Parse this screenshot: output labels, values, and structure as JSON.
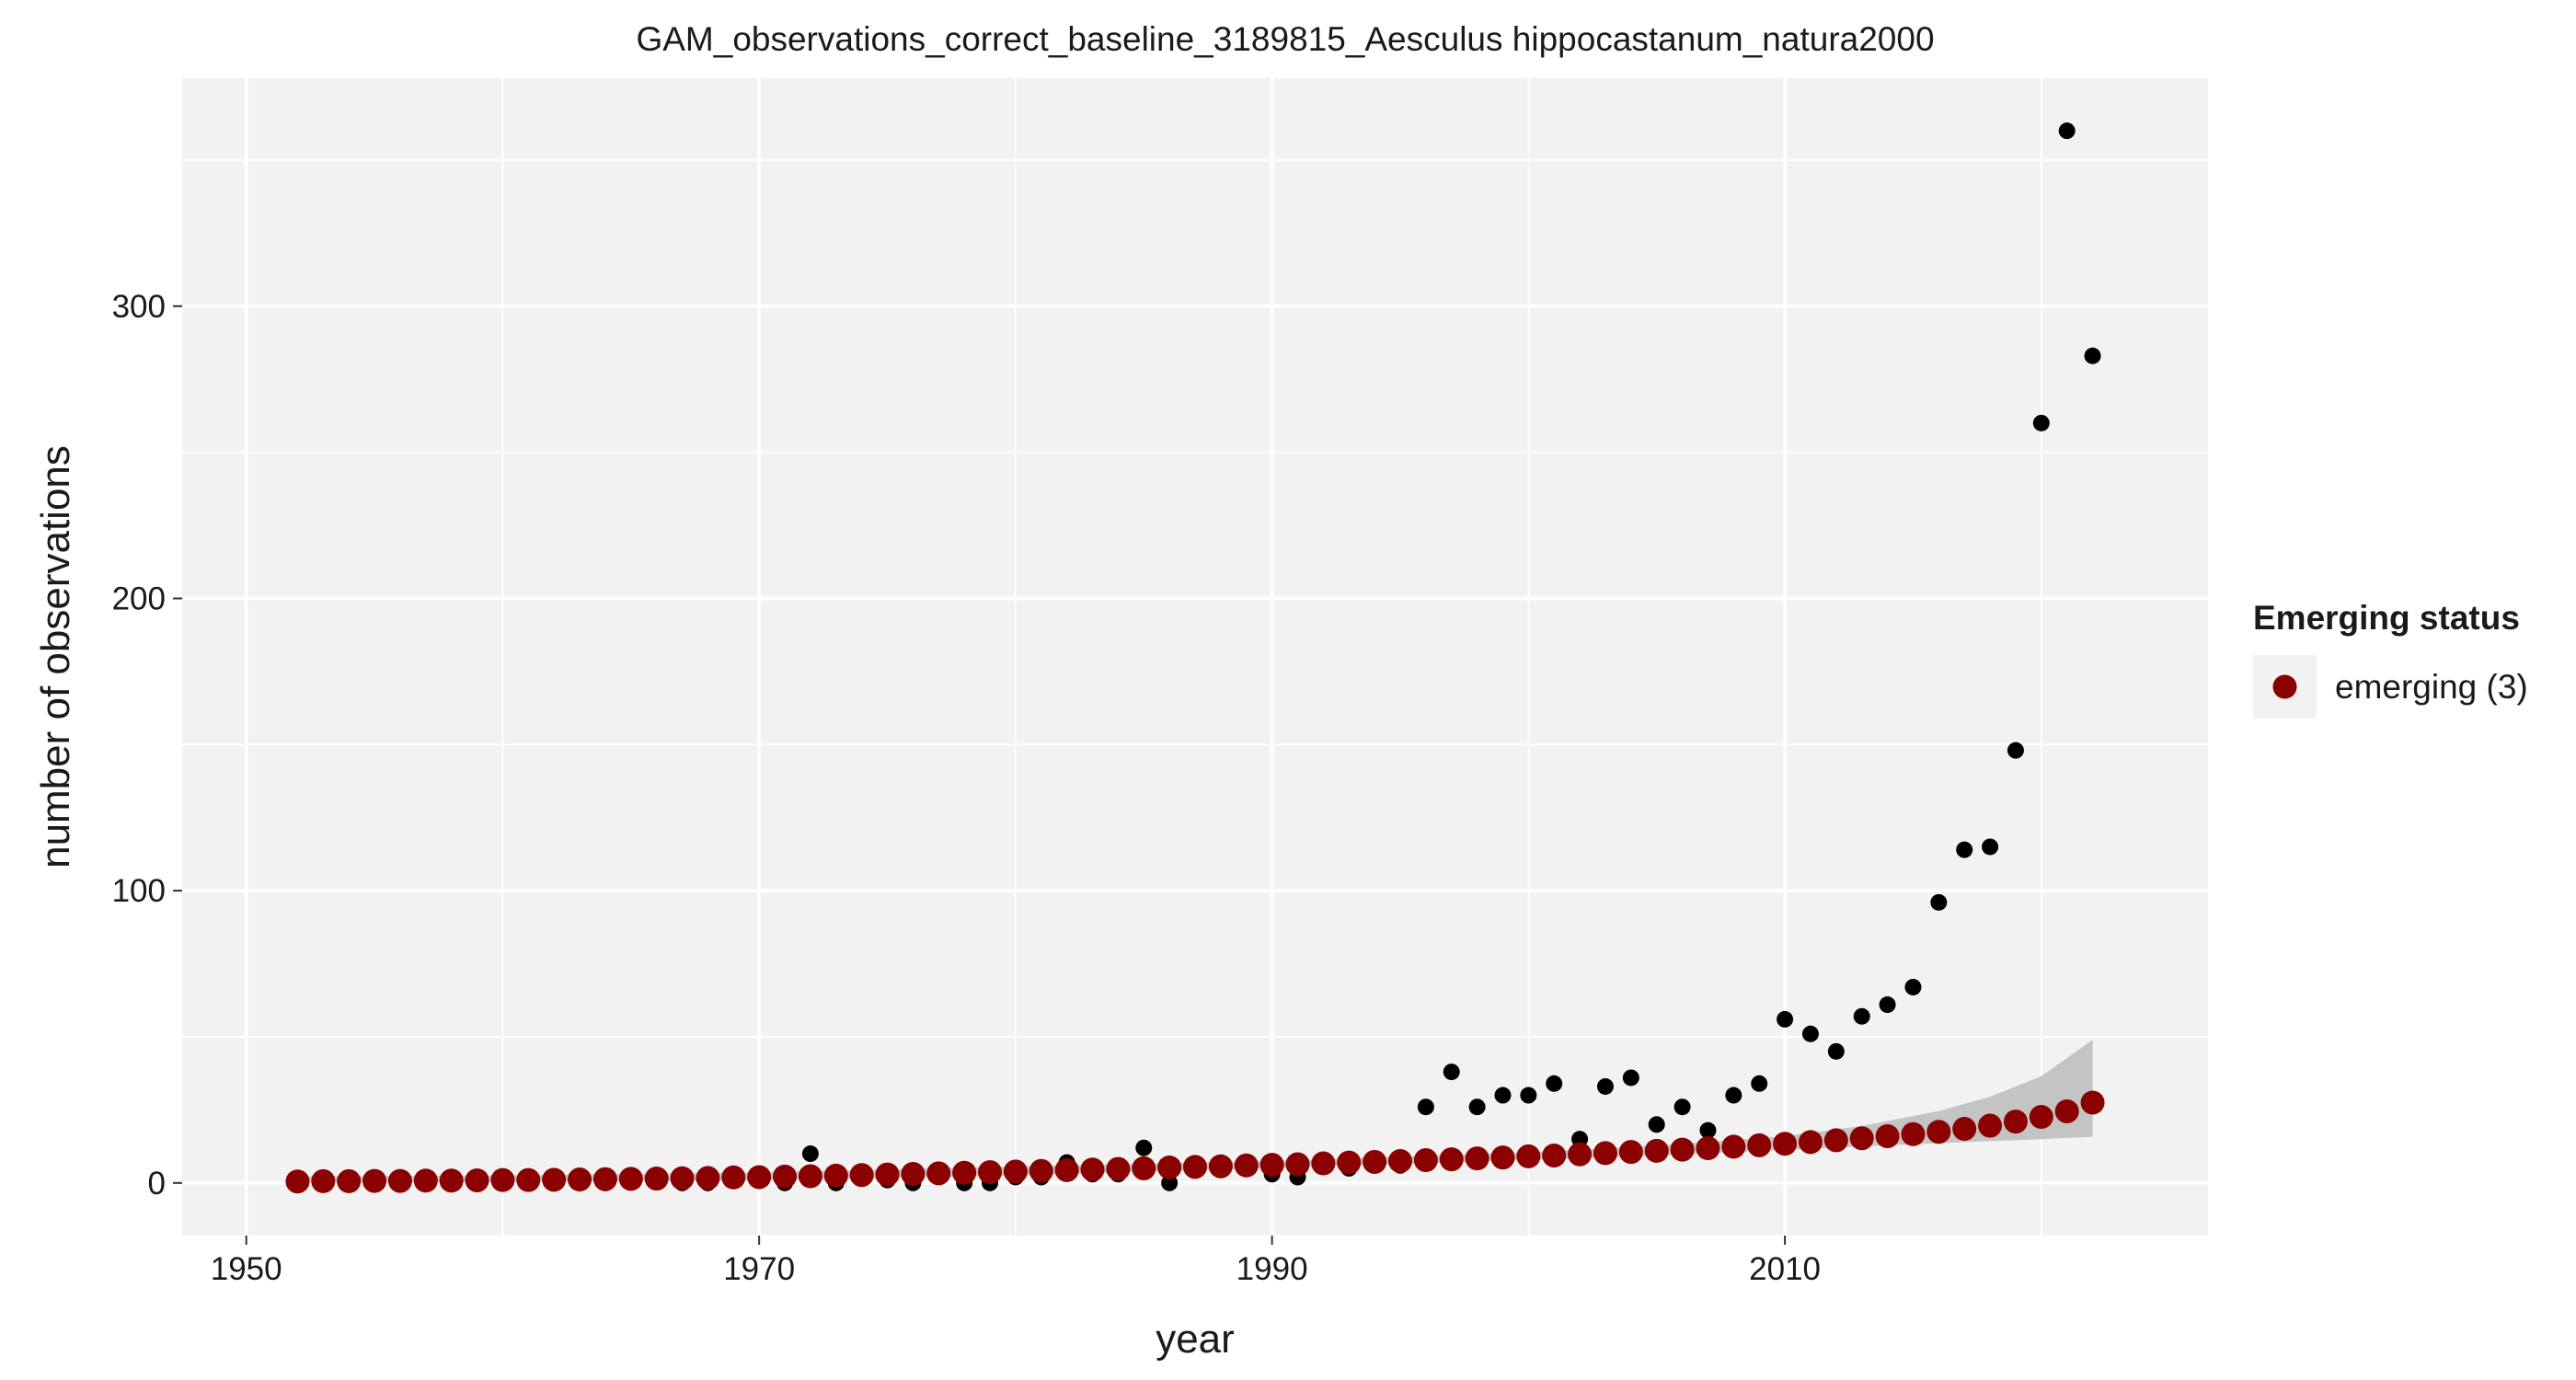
{
  "chart_data": {
    "type": "scatter",
    "title": "GAM_observations_correct_baseline_3189815_Aesculus hippocastanum_natura2000",
    "xlabel": "year",
    "ylabel": "number of observations",
    "xlim": [
      1947.5,
      2026.5
    ],
    "ylim": [
      -18,
      378
    ],
    "x_ticks": [
      1950,
      1970,
      1990,
      2010
    ],
    "y_ticks": [
      0,
      100,
      200,
      300
    ],
    "grid": true,
    "legend": {
      "title": "Emerging status",
      "placement": "right",
      "entries": [
        {
          "label": "emerging (3)",
          "color": "#8b0000"
        }
      ]
    },
    "colors": {
      "panel": "#f2f2f2",
      "grid": "#ffffff",
      "observed": "#000000",
      "fitted": "#8b0000",
      "ribbon": "#c4c4c4"
    },
    "series": [
      {
        "kind": "observed",
        "x": [
          1952,
          1953,
          1954,
          1955,
          1956,
          1957,
          1958,
          1959,
          1960,
          1961,
          1962,
          1963,
          1964,
          1965,
          1966,
          1967,
          1968,
          1969,
          1970,
          1971,
          1972,
          1973,
          1974,
          1975,
          1976,
          1977,
          1978,
          1979,
          1980,
          1981,
          1982,
          1983,
          1984,
          1985,
          1986,
          1987,
          1988,
          1989,
          1990,
          1991,
          1992,
          1993,
          1994,
          1995,
          1996,
          1997,
          1998,
          1999,
          2000,
          2001,
          2002,
          2003,
          2004,
          2005,
          2006,
          2007,
          2008,
          2009,
          2010,
          2011,
          2012,
          2013,
          2014,
          2015,
          2016,
          2017,
          2018,
          2019,
          2020,
          2021,
          2022
        ],
        "y": [
          0,
          0,
          0,
          0,
          0,
          0,
          0,
          0,
          0,
          0,
          0,
          0,
          0,
          1,
          1,
          0,
          0,
          1,
          2,
          0,
          10,
          0,
          3,
          1,
          0,
          4,
          0,
          0,
          2,
          2,
          7,
          3,
          3,
          12,
          0,
          6,
          5,
          6,
          3,
          2,
          6,
          5,
          7,
          6,
          26,
          38,
          26,
          30,
          30,
          34,
          15,
          33,
          36,
          20,
          26,
          18,
          30,
          34,
          56,
          51,
          45,
          57,
          61,
          67,
          96,
          114,
          115,
          148,
          260,
          360,
          283
        ]
      },
      {
        "kind": "fitted",
        "name": "emerging (3)",
        "x": [
          1952,
          1953,
          1954,
          1955,
          1956,
          1957,
          1958,
          1959,
          1960,
          1961,
          1962,
          1963,
          1964,
          1965,
          1966,
          1967,
          1968,
          1969,
          1970,
          1971,
          1972,
          1973,
          1974,
          1975,
          1976,
          1977,
          1978,
          1979,
          1980,
          1981,
          1982,
          1983,
          1984,
          1985,
          1986,
          1987,
          1988,
          1989,
          1990,
          1991,
          1992,
          1993,
          1994,
          1995,
          1996,
          1997,
          1998,
          1999,
          2000,
          2001,
          2002,
          2003,
          2004,
          2005,
          2006,
          2007,
          2008,
          2009,
          2010,
          2011,
          2012,
          2013,
          2014,
          2015,
          2016,
          2017,
          2018,
          2019,
          2020,
          2021,
          2022
        ],
        "y": [
          0.5,
          0.6,
          0.6,
          0.7,
          0.7,
          0.8,
          0.8,
          0.9,
          1.0,
          1.0,
          1.1,
          1.2,
          1.3,
          1.4,
          1.5,
          1.6,
          1.7,
          1.9,
          2.0,
          2.2,
          2.3,
          2.5,
          2.7,
          2.9,
          3.1,
          3.3,
          3.5,
          3.7,
          3.9,
          4.1,
          4.4,
          4.6,
          4.8,
          5.0,
          5.3,
          5.5,
          5.7,
          6.0,
          6.2,
          6.4,
          6.7,
          7.0,
          7.2,
          7.5,
          7.8,
          8.1,
          8.4,
          8.7,
          9.1,
          9.4,
          9.8,
          10.2,
          10.6,
          11.0,
          11.4,
          11.9,
          12.4,
          12.9,
          13.4,
          14.0,
          14.6,
          15.3,
          16.0,
          16.7,
          17.5,
          18.5,
          19.6,
          21.0,
          22.6,
          24.5,
          27.5
        ]
      },
      {
        "kind": "ribbon",
        "x": [
          1952,
          1960,
          1970,
          1980,
          1990,
          2000,
          2005,
          2010,
          2013,
          2016,
          2018,
          2020,
          2022
        ],
        "lower": [
          0.1,
          0.3,
          0.9,
          2.6,
          5.1,
          7.8,
          9.4,
          11.3,
          12.5,
          13.6,
          14.3,
          15.0,
          15.8
        ],
        "upper": [
          2.2,
          2.6,
          3.6,
          5.6,
          7.6,
          10.5,
          12.8,
          16.0,
          19.5,
          24.6,
          29.5,
          36.5,
          49.0
        ]
      }
    ]
  }
}
